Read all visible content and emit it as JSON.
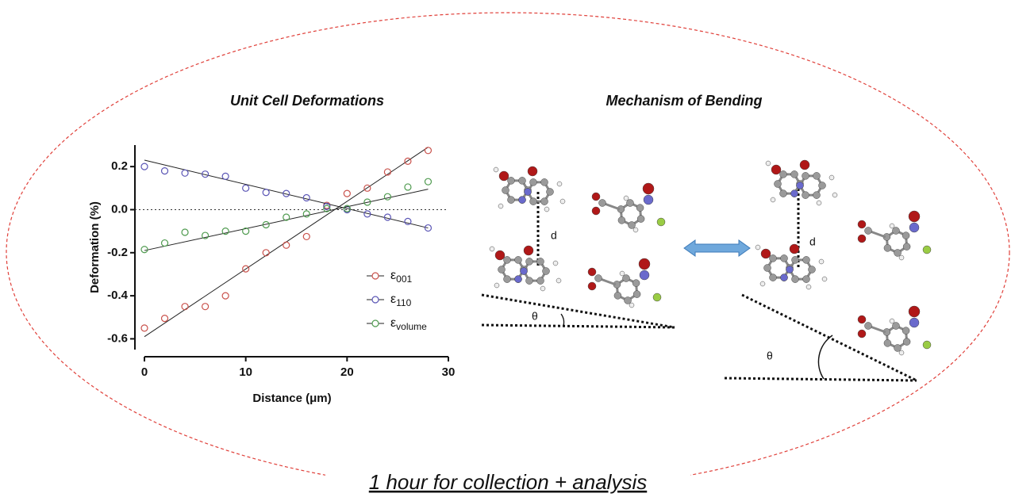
{
  "chart_data": {
    "type": "scatter",
    "title": "Unit Cell Deformations",
    "x_label": "Distance (μm)",
    "y_label": "Deformation (%)",
    "x": [
      0,
      2,
      4,
      6,
      8,
      10,
      12,
      14,
      16,
      18,
      20,
      22,
      24,
      26,
      28
    ],
    "series": [
      {
        "name": "ε001",
        "color": "#c9514b",
        "values": [
          -0.55,
          -0.505,
          -0.45,
          -0.45,
          -0.4,
          -0.275,
          -0.2,
          -0.165,
          -0.125,
          0.02,
          0.075,
          0.1,
          0.175,
          0.225,
          0.275
        ],
        "fit": {
          "x": [
            0,
            28
          ],
          "values": [
            -0.59,
            0.29
          ]
        }
      },
      {
        "name": "ε110",
        "color": "#5a55b5",
        "values": [
          0.2,
          0.18,
          0.17,
          0.165,
          0.155,
          0.1,
          0.08,
          0.075,
          0.055,
          0.015,
          0.0,
          -0.02,
          -0.035,
          -0.055,
          -0.085
        ],
        "fit": {
          "x": [
            0,
            28
          ],
          "values": [
            0.23,
            -0.085
          ]
        }
      },
      {
        "name": "εvolume",
        "color": "#4e9a4e",
        "values": [
          -0.185,
          -0.155,
          -0.105,
          -0.12,
          -0.1,
          -0.1,
          -0.07,
          -0.035,
          -0.02,
          0.005,
          0.005,
          0.035,
          0.06,
          0.105,
          0.13
        ],
        "fit": {
          "x": [
            0,
            28
          ],
          "values": [
            -0.19,
            0.095
          ]
        }
      }
    ],
    "reference_line": 0,
    "xlim": [
      0,
      30
    ],
    "xticks": [
      0,
      10,
      20,
      30
    ],
    "ylim": [
      -0.65,
      0.3
    ],
    "yticks": [
      {
        "value": 0.2,
        "label": "0.2"
      },
      {
        "value": 0,
        "label": "0.0"
      },
      -0.2,
      -0.4,
      -0.6
    ],
    "fit_color": "#222222"
  },
  "diagram": {
    "title": "Mechanism of Bending",
    "labels": [
      "d",
      "θ",
      "d",
      "θ"
    ]
  },
  "caption": "1 hour for collection + analysis"
}
